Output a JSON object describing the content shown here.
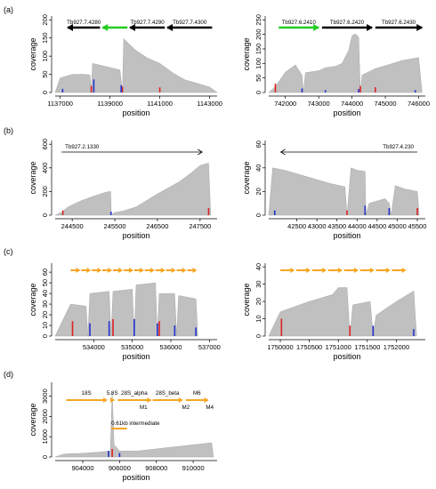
{
  "figure": {
    "panel_labels": [
      "(a)",
      "(b)",
      "(c)",
      "(d)"
    ],
    "y_axis_label": "coverage",
    "x_axis_label": "position",
    "colors": {
      "coverage": "#c0c0c0",
      "red": "#dd2222",
      "blue": "#2233cc",
      "orange": "#f5a623",
      "green": "#22cc22",
      "black": "#000000"
    }
  },
  "chart_data": [
    {
      "type": "area",
      "panel": "(a)",
      "xlabel": "position",
      "ylabel": "coverage",
      "xlim": [
        1136800,
        1143300
      ],
      "ylim": [
        0,
        200
      ],
      "xticks": [
        "1137000",
        "1139000",
        "1141000",
        "1143000"
      ],
      "yticks": [
        "0",
        "50",
        "100",
        "150",
        "200"
      ],
      "genes": [
        {
          "name": "Tb927.7.4280",
          "start": 1137300,
          "end": 1138600,
          "dir": "left",
          "color": "black"
        },
        {
          "name": "",
          "start": 1138700,
          "end": 1139700,
          "dir": "left",
          "color": "green"
        },
        {
          "name": "Tb927.7.4290",
          "start": 1139800,
          "end": 1141200,
          "dir": "left",
          "color": "black"
        },
        {
          "name": "Tb927.7.4300",
          "start": 1141300,
          "end": 1143100,
          "dir": "left",
          "color": "black"
        }
      ],
      "coverage": [
        [
          1136800,
          0
        ],
        [
          1137000,
          40
        ],
        [
          1137500,
          50
        ],
        [
          1138000,
          50
        ],
        [
          1138200,
          48
        ],
        [
          1138250,
          0
        ],
        [
          1138300,
          80
        ],
        [
          1138800,
          72
        ],
        [
          1139400,
          62
        ],
        [
          1139500,
          0
        ],
        [
          1139550,
          148
        ],
        [
          1140000,
          118
        ],
        [
          1140500,
          95
        ],
        [
          1141000,
          80
        ],
        [
          1141500,
          55
        ],
        [
          1142000,
          35
        ],
        [
          1142500,
          25
        ],
        [
          1143000,
          15
        ],
        [
          1143300,
          0
        ]
      ],
      "red_marks": [
        [
          1138250,
          18
        ],
        [
          1139500,
          16
        ],
        [
          1141000,
          14
        ]
      ],
      "blue_marks": [
        [
          1138350,
          36
        ],
        [
          1139450,
          20
        ],
        [
          1137100,
          10
        ]
      ]
    },
    {
      "type": "area",
      "panel": "(a)",
      "xlabel": "position",
      "ylabel": "coverage",
      "xlim": [
        741500,
        746200
      ],
      "ylim": [
        0,
        250
      ],
      "xticks": [
        "742000",
        "743000",
        "744000",
        "745000",
        "746000"
      ],
      "yticks": [
        "0",
        "50",
        "100",
        "150",
        "200",
        "250"
      ],
      "genes": [
        {
          "name": "Tb927.6.2410",
          "start": 741800,
          "end": 743000,
          "dir": "right",
          "color": "green"
        },
        {
          "name": "Tb927.6.2420",
          "start": 743100,
          "end": 744600,
          "dir": "right",
          "color": "black"
        },
        {
          "name": "Tb927.6.2430",
          "start": 744700,
          "end": 746100,
          "dir": "right",
          "color": "black"
        }
      ],
      "coverage": [
        [
          741500,
          0
        ],
        [
          741700,
          20
        ],
        [
          742000,
          70
        ],
        [
          742300,
          95
        ],
        [
          742500,
          60
        ],
        [
          742550,
          0
        ],
        [
          742600,
          68
        ],
        [
          743000,
          75
        ],
        [
          743200,
          85
        ],
        [
          743500,
          90
        ],
        [
          743700,
          100
        ],
        [
          743900,
          145
        ],
        [
          744000,
          195
        ],
        [
          744100,
          202
        ],
        [
          744200,
          190
        ],
        [
          744250,
          0
        ],
        [
          744300,
          60
        ],
        [
          744700,
          82
        ],
        [
          745000,
          92
        ],
        [
          745500,
          110
        ],
        [
          746000,
          120
        ],
        [
          746100,
          0
        ]
      ],
      "red_marks": [
        [
          741700,
          30
        ],
        [
          744250,
          22
        ],
        [
          744700,
          18
        ]
      ],
      "blue_marks": [
        [
          742500,
          14
        ],
        [
          743200,
          8
        ],
        [
          744200,
          12
        ],
        [
          745900,
          8
        ]
      ]
    },
    {
      "type": "area",
      "panel": "(b)",
      "xlabel": "position",
      "ylabel": "coverage",
      "xlim": [
        244100,
        247900
      ],
      "ylim": [
        0,
        600
      ],
      "xticks": [
        "244500",
        "245500",
        "246500",
        "247500"
      ],
      "yticks": [
        "0",
        "200",
        "400",
        "600"
      ],
      "genes": [
        {
          "name": "Tb927.2.1330",
          "start": 244250,
          "end": 247550,
          "dir": "right",
          "color": "black"
        }
      ],
      "coverage": [
        [
          244100,
          0
        ],
        [
          244250,
          25
        ],
        [
          244400,
          70
        ],
        [
          244700,
          120
        ],
        [
          245000,
          160
        ],
        [
          245300,
          195
        ],
        [
          245400,
          200
        ],
        [
          245420,
          0
        ],
        [
          245480,
          20
        ],
        [
          245700,
          35
        ],
        [
          246000,
          70
        ],
        [
          246500,
          180
        ],
        [
          247000,
          280
        ],
        [
          247300,
          360
        ],
        [
          247500,
          420
        ],
        [
          247700,
          440
        ],
        [
          247750,
          0
        ]
      ],
      "red_marks": [
        [
          244280,
          40
        ],
        [
          247700,
          60
        ]
      ],
      "blue_marks": [
        [
          245410,
          30
        ]
      ]
    },
    {
      "type": "area",
      "panel": "(b)",
      "xlabel": "position",
      "ylabel": "coverage",
      "xlim": [
        41800,
        45700
      ],
      "ylim": [
        0,
        60
      ],
      "xticks": [
        "42500",
        "43000",
        "43500",
        "44000",
        "44500",
        "45000",
        "45500"
      ],
      "yticks": [
        "0",
        "20",
        "40",
        "60"
      ],
      "genes": [
        {
          "name": "Tb927.4.230",
          "start": 42100,
          "end": 45500,
          "dir": "left",
          "color": "black"
        }
      ],
      "coverage": [
        [
          41800,
          0
        ],
        [
          41900,
          40
        ],
        [
          42200,
          38
        ],
        [
          42600,
          34
        ],
        [
          43000,
          30
        ],
        [
          43300,
          27
        ],
        [
          43700,
          24
        ],
        [
          43750,
          0
        ],
        [
          43850,
          40
        ],
        [
          44000,
          38
        ],
        [
          44200,
          37
        ],
        [
          44220,
          0
        ],
        [
          44300,
          10
        ],
        [
          44700,
          14
        ],
        [
          44800,
          10
        ],
        [
          44850,
          0
        ],
        [
          44950,
          25
        ],
        [
          45200,
          22
        ],
        [
          45500,
          20
        ],
        [
          45550,
          0
        ]
      ],
      "red_marks": [
        [
          43750,
          4
        ],
        [
          45500,
          6
        ]
      ],
      "blue_marks": [
        [
          41950,
          4
        ],
        [
          44200,
          8
        ],
        [
          44800,
          6
        ]
      ]
    },
    {
      "type": "area",
      "panel": "(c)",
      "xlabel": "position",
      "ylabel": "coverage",
      "xlim": [
        533000,
        537200
      ],
      "ylim": [
        0,
        65
      ],
      "xticks": [
        "534000",
        "535000",
        "536000",
        "537000"
      ],
      "yticks": [
        "0",
        "10",
        "20",
        "30",
        "40",
        "50",
        "60"
      ],
      "gene_repeats": {
        "count": 12,
        "start": 533400,
        "end": 536700,
        "color": "orange",
        "y": 60
      },
      "coverage": [
        [
          533000,
          0
        ],
        [
          533400,
          30
        ],
        [
          533800,
          28
        ],
        [
          533850,
          0
        ],
        [
          533900,
          40
        ],
        [
          534400,
          42
        ],
        [
          534450,
          0
        ],
        [
          534500,
          42
        ],
        [
          535000,
          44
        ],
        [
          535050,
          0
        ],
        [
          535100,
          48
        ],
        [
          535600,
          50
        ],
        [
          535650,
          0
        ],
        [
          535700,
          40
        ],
        [
          536100,
          40
        ],
        [
          536150,
          0
        ],
        [
          536200,
          38
        ],
        [
          536650,
          35
        ],
        [
          536700,
          0
        ]
      ],
      "red_marks": [
        [
          533450,
          14
        ],
        [
          534500,
          16
        ],
        [
          535700,
          14
        ]
      ],
      "blue_marks": [
        [
          533900,
          12
        ],
        [
          534400,
          14
        ],
        [
          535050,
          16
        ],
        [
          535650,
          12
        ],
        [
          536100,
          10
        ],
        [
          536650,
          8
        ]
      ]
    },
    {
      "type": "area",
      "panel": "(c)",
      "xlabel": "position",
      "ylabel": "coverage",
      "xlim": [
        1749800,
        1752500
      ],
      "ylim": [
        0,
        40
      ],
      "xticks": [
        "1750000",
        "1750500",
        "1751000",
        "1751500",
        "1752000"
      ],
      "yticks": [
        "0",
        "10",
        "20",
        "30",
        "40"
      ],
      "gene_repeats": {
        "count": 8,
        "start": 1750000,
        "end": 1752200,
        "color": "orange",
        "y": 35
      },
      "coverage": [
        [
          1749800,
          0
        ],
        [
          1750000,
          14
        ],
        [
          1750500,
          20
        ],
        [
          1750900,
          24
        ],
        [
          1751000,
          28
        ],
        [
          1751150,
          28
        ],
        [
          1751200,
          0
        ],
        [
          1751250,
          18
        ],
        [
          1751550,
          20
        ],
        [
          1751600,
          0
        ],
        [
          1751650,
          12
        ],
        [
          1752000,
          20
        ],
        [
          1752300,
          26
        ],
        [
          1752350,
          0
        ]
      ],
      "red_marks": [
        [
          1750020,
          10
        ],
        [
          1751200,
          6
        ]
      ],
      "blue_marks": [
        [
          1751600,
          6
        ],
        [
          1752300,
          4
        ]
      ]
    },
    {
      "type": "area",
      "panel": "(d)",
      "xlabel": "position",
      "ylabel": "coverage",
      "xlim": [
        902500,
        911300
      ],
      "ylim": [
        0,
        3500
      ],
      "xticks": [
        "904000",
        "906000",
        "908000",
        "910000"
      ],
      "yticks": [
        "0",
        "1000",
        "2000",
        "3000"
      ],
      "rRNA_features": [
        {
          "name": "18S",
          "start": 903100,
          "end": 905300
        },
        {
          "name": "5.8S",
          "start": 905500,
          "end": 905700
        },
        {
          "name": "28S_alpha",
          "start": 905900,
          "end": 907700
        },
        {
          "name": "28S_beta",
          "start": 907800,
          "end": 909400
        },
        {
          "name": "M6",
          "start": 909600,
          "end": 910800
        }
      ],
      "sub_labels": [
        "M1",
        "M2",
        "M4"
      ],
      "intermediate_label": "0.61kb intermediate",
      "coverage": [
        [
          902500,
          0
        ],
        [
          903000,
          150
        ],
        [
          904000,
          180
        ],
        [
          905000,
          250
        ],
        [
          905500,
          300
        ],
        [
          905600,
          3200
        ],
        [
          905700,
          600
        ],
        [
          906000,
          300
        ],
        [
          907000,
          300
        ],
        [
          908000,
          400
        ],
        [
          909000,
          500
        ],
        [
          910000,
          600
        ],
        [
          911000,
          700
        ],
        [
          911100,
          0
        ]
      ],
      "red_marks": [
        [
          905600,
          400
        ]
      ],
      "blue_marks": [
        [
          905400,
          300
        ],
        [
          906000,
          200
        ]
      ]
    }
  ]
}
